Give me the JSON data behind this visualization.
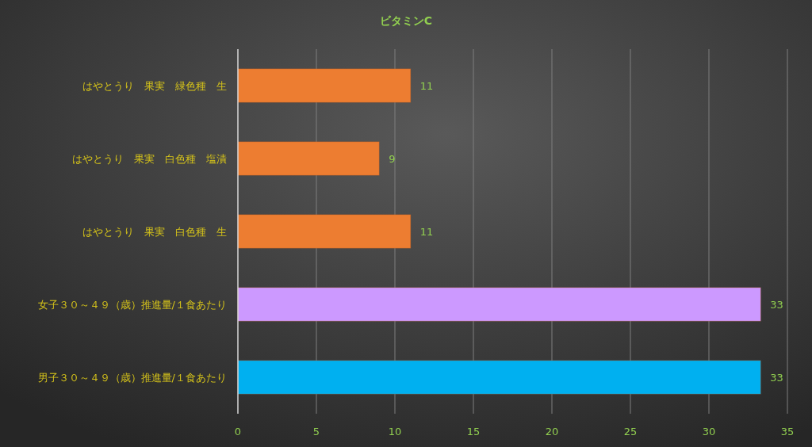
{
  "chart_data": {
    "type": "bar",
    "orientation": "horizontal",
    "title": "ビタミンC",
    "categories": [
      "はやとうり　果実　緑色種　生",
      "はやとうり　果実　白色種　塩漬",
      "はやとうり　果実　白色種　生",
      "女子３０～４９（歳）推進量/１食あたり",
      "男子３０～４９（歳）推進量/１食あたり"
    ],
    "values": [
      11,
      9,
      11,
      33.3,
      33.3
    ],
    "value_labels": [
      "11",
      "9",
      "11",
      "33",
      "33"
    ],
    "colors": [
      "#ed7d31",
      "#ed7d31",
      "#ed7d31",
      "#cc99ff",
      "#00b0f0"
    ],
    "xlim": [
      0,
      35
    ],
    "xticks": [
      0,
      5,
      10,
      15,
      20,
      25,
      30,
      35
    ],
    "grid": "x"
  }
}
